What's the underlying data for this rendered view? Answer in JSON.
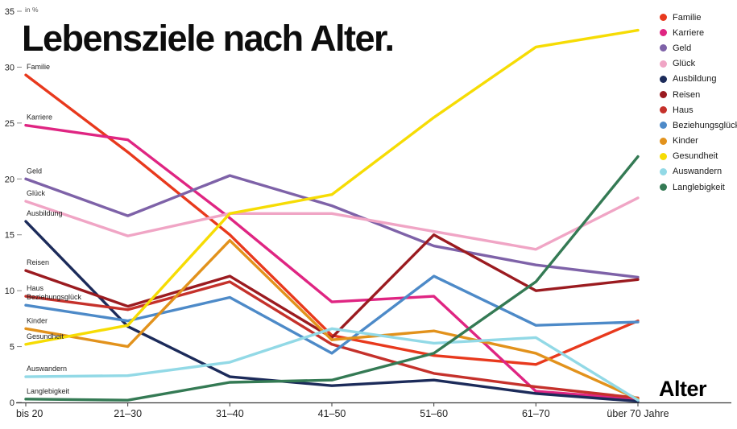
{
  "chart_data": {
    "type": "line",
    "title": "Lebensziele nach Alter.",
    "xlabel": "Alter",
    "ylabel": "in %",
    "ylim": [
      0,
      35
    ],
    "yticks": [
      0,
      5,
      10,
      15,
      20,
      25,
      30,
      35
    ],
    "grid": false,
    "legend_position": "top-right",
    "categories": [
      "bis 20",
      "21–30",
      "31–40",
      "41–50",
      "51–60",
      "61–70",
      "über 70 Jahre"
    ],
    "series": [
      {
        "name": "Familie",
        "color": "#e8391d",
        "values": [
          29.3,
          22.4,
          15.0,
          6.0,
          4.2,
          3.4,
          7.3
        ]
      },
      {
        "name": "Karriere",
        "color": "#df2582",
        "values": [
          24.8,
          23.5,
          16.5,
          9.0,
          9.5,
          1.0,
          0.3
        ]
      },
      {
        "name": "Geld",
        "color": "#7e62a8",
        "values": [
          20.0,
          16.7,
          20.3,
          17.6,
          14.0,
          12.3,
          11.2
        ]
      },
      {
        "name": "Glück",
        "color": "#f0a5c5",
        "values": [
          18.0,
          14.9,
          16.9,
          16.9,
          15.3,
          13.7,
          18.3
        ]
      },
      {
        "name": "Ausbildung",
        "color": "#1c2b5a",
        "values": [
          16.2,
          6.8,
          2.3,
          1.5,
          2.0,
          0.8,
          0.1
        ]
      },
      {
        "name": "Reisen",
        "color": "#9b1b20",
        "values": [
          11.8,
          8.6,
          11.3,
          5.8,
          15.0,
          10.0,
          11.0
        ]
      },
      {
        "name": "Haus",
        "color": "#c5312b",
        "values": [
          9.5,
          8.3,
          10.8,
          5.2,
          2.6,
          1.4,
          0.4
        ]
      },
      {
        "name": "Beziehungsglück",
        "color": "#4d8ac8",
        "values": [
          8.7,
          7.3,
          9.4,
          4.4,
          11.3,
          6.9,
          7.2
        ]
      },
      {
        "name": "Kinder",
        "color": "#e2921c",
        "values": [
          6.6,
          5.0,
          14.5,
          5.6,
          6.4,
          4.4,
          0.3
        ]
      },
      {
        "name": "Gesundheit",
        "color": "#f6dc04",
        "values": [
          5.2,
          6.9,
          16.9,
          18.6,
          25.5,
          31.8,
          33.3
        ]
      },
      {
        "name": "Auswandern",
        "color": "#92d9e6",
        "values": [
          2.3,
          2.4,
          3.6,
          6.6,
          5.3,
          5.8,
          0.2
        ]
      },
      {
        "name": "Langlebigkeit",
        "color": "#347a54",
        "values": [
          0.3,
          0.2,
          1.8,
          2.0,
          4.4,
          10.8,
          22.0
        ]
      }
    ]
  }
}
